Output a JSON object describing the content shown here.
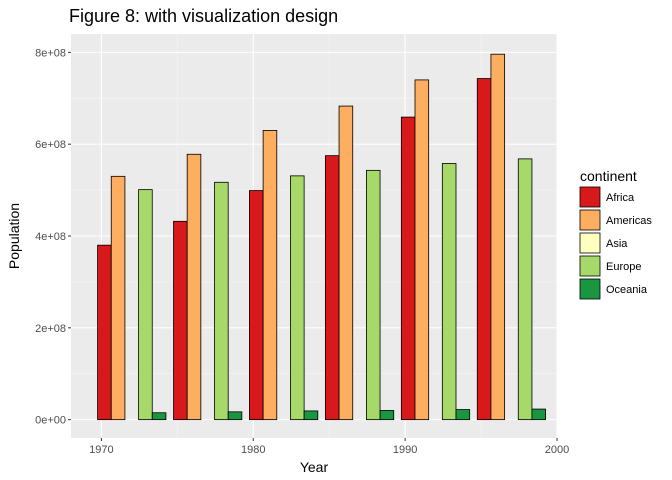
{
  "chart_data": {
    "type": "bar",
    "title": "Figure 8: with visualization design",
    "xlabel": "Year",
    "ylabel": "Population",
    "x": [
      1972,
      1977,
      1982,
      1987,
      1992,
      1997
    ],
    "xlim": [
      1968,
      2000
    ],
    "xticks": [
      1970,
      1980,
      1990,
      2000
    ],
    "xtick_labels": [
      "1970",
      "1980",
      "1990",
      "2000"
    ],
    "ylim": [
      -40000000,
      840000000
    ],
    "yticks": [
      0,
      200000000,
      400000000,
      600000000,
      800000000
    ],
    "ytick_labels": [
      "0e+00",
      "2e+08",
      "4e+08",
      "6e+08",
      "8e+08"
    ],
    "bar_group_width": 4.5,
    "grid": true,
    "legend": {
      "title": "continent",
      "position": "right"
    },
    "series": [
      {
        "name": "Africa",
        "color": "#d7191c",
        "values": [
          380000000,
          432000000,
          499000000,
          575000000,
          659000000,
          743000000
        ]
      },
      {
        "name": "Americas",
        "color": "#fdae61",
        "values": [
          530000000,
          578000000,
          630000000,
          683000000,
          740000000,
          796000000
        ]
      },
      {
        "name": "Asia",
        "color": "#ffffbf",
        "values": [
          0,
          0,
          0,
          0,
          0,
          0
        ]
      },
      {
        "name": "Europe",
        "color": "#a6d96a",
        "values": [
          501000000,
          517000000,
          531000000,
          543000000,
          558000000,
          568000000
        ]
      },
      {
        "name": "Oceania",
        "color": "#1a9641",
        "values": [
          15000000,
          17000000,
          19000000,
          20000000,
          22000000,
          23000000
        ]
      }
    ]
  }
}
